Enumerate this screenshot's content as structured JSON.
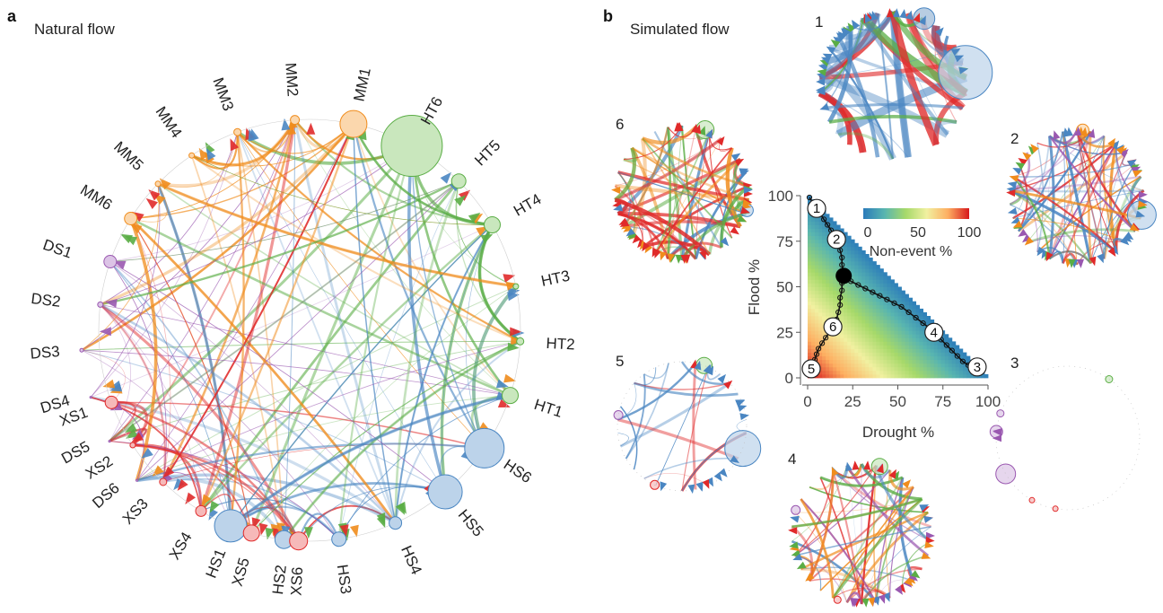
{
  "panel_a": {
    "letter": "a",
    "title": "Natural flow",
    "nodes": [
      {
        "id": "HS1",
        "group": "HS",
        "size": 18,
        "angle": 112
      },
      {
        "id": "HS2",
        "group": "HS",
        "size": 10,
        "angle": 97
      },
      {
        "id": "HS3",
        "group": "HS",
        "size": 8,
        "angle": 82
      },
      {
        "id": "HS4",
        "group": "HS",
        "size": 7,
        "angle": 66
      },
      {
        "id": "HS5",
        "group": "HS",
        "size": 19,
        "angle": 50
      },
      {
        "id": "HS6",
        "group": "HS",
        "size": 22,
        "angle": 34
      },
      {
        "id": "HT1",
        "group": "HT",
        "size": 9,
        "angle": 18
      },
      {
        "id": "HT2",
        "group": "HT",
        "size": 4,
        "angle": 3
      },
      {
        "id": "HT3",
        "group": "HT",
        "size": 3,
        "angle": -12
      },
      {
        "id": "HT4",
        "group": "HT",
        "size": 9,
        "angle": -30
      },
      {
        "id": "HT5",
        "group": "HT",
        "size": 8,
        "angle": -45
      },
      {
        "id": "HT6",
        "group": "HT",
        "size": 34,
        "angle": -61
      },
      {
        "id": "MM1",
        "group": "MM",
        "size": 15,
        "angle": -78
      },
      {
        "id": "MM2",
        "group": "MM",
        "size": 5,
        "angle": -94
      },
      {
        "id": "MM3",
        "group": "MM",
        "size": 4,
        "angle": -110
      },
      {
        "id": "MM4",
        "group": "MM",
        "size": 3,
        "angle": -124
      },
      {
        "id": "MM5",
        "group": "MM",
        "size": 3,
        "angle": -136
      },
      {
        "id": "MM6",
        "group": "MM",
        "size": 7,
        "angle": -148
      },
      {
        "id": "DS1",
        "group": "DS",
        "size": 7,
        "angle": -161
      },
      {
        "id": "DS2",
        "group": "DS",
        "size": 3,
        "angle": -173
      },
      {
        "id": "DS3",
        "group": "DS",
        "size": 2,
        "angle": 175
      },
      {
        "id": "DS4",
        "group": "DS",
        "size": 1,
        "angle": 163
      },
      {
        "id": "DS5",
        "group": "DS",
        "size": 1,
        "angle": 151
      },
      {
        "id": "DS6",
        "group": "DS",
        "size": 1,
        "angle": 139
      },
      {
        "id": "XS1",
        "group": "XS",
        "size": 7,
        "angle": 160
      },
      {
        "id": "XS2",
        "group": "XS",
        "size": 3,
        "angle": 147
      },
      {
        "id": "XS3",
        "group": "XS",
        "size": 4,
        "angle": 134
      },
      {
        "id": "XS4",
        "group": "XS",
        "size": 6,
        "angle": 121
      },
      {
        "id": "XS5",
        "group": "XS",
        "size": 9,
        "angle": 106
      },
      {
        "id": "XS6",
        "group": "XS",
        "size": 10,
        "angle": 93
      }
    ]
  },
  "colors": {
    "HS": "#4a86c2",
    "HT": "#5aad45",
    "MM": "#f08c1c",
    "DS": "#9a58b0",
    "XS": "#e02a2a"
  },
  "panel_b": {
    "letter": "b",
    "title": "Simulated flow",
    "mini_networks": [
      {
        "label": "1"
      },
      {
        "label": "2"
      },
      {
        "label": "3"
      },
      {
        "label": "4"
      },
      {
        "label": "5"
      },
      {
        "label": "6"
      }
    ]
  },
  "chart_data": {
    "type": "scatter",
    "xlabel": "Drought %",
    "ylabel": "Flood %",
    "xlim": [
      0,
      100
    ],
    "ylim": [
      0,
      100
    ],
    "xticks": [
      "0",
      "25",
      "50",
      "75",
      "100"
    ],
    "yticks": [
      "0",
      "25",
      "50",
      "75",
      "100"
    ],
    "fill_colorbar": {
      "label": "Non-event %",
      "ticks": [
        "0",
        "50",
        "100"
      ],
      "colors": [
        "#2b7bba",
        "#58b5b0",
        "#a6d96a",
        "#f1f0a0",
        "#fdae61",
        "#d7191c"
      ]
    },
    "highlight": {
      "x": 20,
      "y": 56
    },
    "labeled_points": [
      {
        "label": "1",
        "x": 5,
        "y": 93
      },
      {
        "label": "2",
        "x": 16,
        "y": 76
      },
      {
        "label": "3",
        "x": 94,
        "y": 6
      },
      {
        "label": "4",
        "x": 70,
        "y": 25
      },
      {
        "label": "5",
        "x": 2,
        "y": 5
      },
      {
        "label": "6",
        "x": 14,
        "y": 28
      }
    ],
    "path_a": [
      [
        1,
        99
      ],
      [
        3,
        96
      ],
      [
        5,
        93
      ],
      [
        7,
        90
      ],
      [
        9,
        87
      ],
      [
        11,
        84
      ],
      [
        13,
        81
      ],
      [
        15,
        78
      ],
      [
        16,
        76
      ],
      [
        17,
        73
      ],
      [
        18,
        70
      ],
      [
        19,
        66
      ],
      [
        19,
        62
      ],
      [
        20,
        58
      ],
      [
        20,
        56
      ],
      [
        19,
        52
      ],
      [
        19,
        48
      ],
      [
        18,
        44
      ],
      [
        18,
        40
      ],
      [
        17,
        36
      ],
      [
        16,
        32
      ],
      [
        14,
        28
      ],
      [
        12,
        25
      ],
      [
        10,
        22
      ],
      [
        8,
        19
      ],
      [
        6,
        16
      ],
      [
        5,
        13
      ],
      [
        4,
        10
      ],
      [
        3,
        7
      ],
      [
        2,
        5
      ]
    ],
    "path_b": [
      [
        20,
        56
      ],
      [
        24,
        53
      ],
      [
        28,
        51
      ],
      [
        32,
        49
      ],
      [
        36,
        47
      ],
      [
        40,
        45
      ],
      [
        44,
        43
      ],
      [
        48,
        41
      ],
      [
        52,
        39
      ],
      [
        56,
        36
      ],
      [
        60,
        33
      ],
      [
        64,
        30
      ],
      [
        68,
        27
      ],
      [
        71,
        24
      ],
      [
        74,
        21
      ],
      [
        77,
        18
      ],
      [
        80,
        15
      ],
      [
        83,
        12
      ],
      [
        86,
        9
      ],
      [
        89,
        7
      ],
      [
        92,
        5
      ],
      [
        94,
        4
      ]
    ]
  }
}
